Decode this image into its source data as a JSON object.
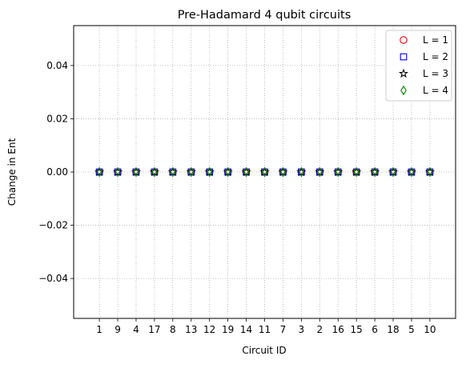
{
  "chart_data": {
    "type": "scatter",
    "title": "Pre-Hadamard 4 qubit circuits",
    "xlabel": "Circuit ID",
    "ylabel": "Change in Ent",
    "categories": [
      "1",
      "9",
      "4",
      "17",
      "8",
      "13",
      "12",
      "19",
      "14",
      "11",
      "7",
      "3",
      "2",
      "16",
      "15",
      "6",
      "18",
      "5",
      "10"
    ],
    "ylim": [
      -0.055,
      0.055
    ],
    "yticks": [
      -0.04,
      -0.02,
      0.0,
      0.02,
      0.04
    ],
    "ytick_labels": [
      "−0.04",
      "−0.02",
      "0.00",
      "0.02",
      "0.04"
    ],
    "grid": true,
    "legend_position": "top-right",
    "series": [
      {
        "name": "L = 1",
        "marker": "circle",
        "color": "#ff0000",
        "values": [
          0,
          0,
          0,
          0,
          0,
          0,
          0,
          0,
          0,
          0,
          0,
          0,
          0,
          0,
          0,
          0,
          0,
          0,
          0
        ]
      },
      {
        "name": "L = 2",
        "marker": "square",
        "color": "#0000ff",
        "values": [
          0,
          0,
          0,
          0,
          0,
          0,
          0,
          0,
          0,
          0,
          0,
          0,
          0,
          0,
          0,
          0,
          0,
          0,
          0
        ]
      },
      {
        "name": "L = 3",
        "marker": "star",
        "color": "#000000",
        "values": [
          0,
          0,
          0,
          0,
          0,
          0,
          0,
          0,
          0,
          0,
          0,
          0,
          0,
          0,
          0,
          0,
          0,
          0,
          0
        ]
      },
      {
        "name": "L = 4",
        "marker": "diamond",
        "color": "#008000",
        "values": [
          0,
          0,
          0,
          0,
          0,
          0,
          0,
          0,
          0,
          0,
          0,
          0,
          0,
          0,
          0,
          0,
          0,
          0,
          0
        ]
      }
    ]
  }
}
